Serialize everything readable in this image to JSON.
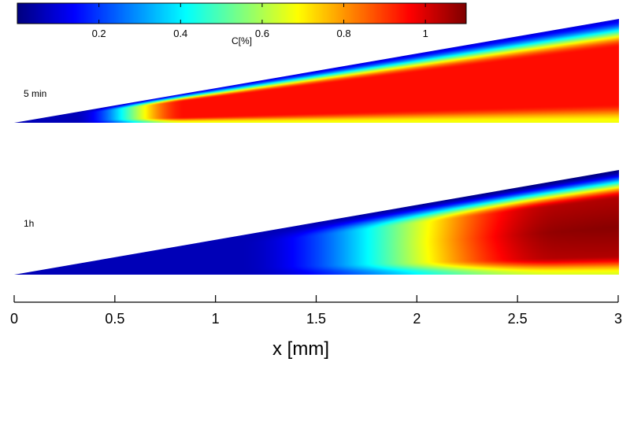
{
  "chart_data": {
    "type": "heatmap",
    "colorbar": {
      "label": "C[%]",
      "ticks": [
        0.2,
        0.4,
        0.6,
        0.8,
        1
      ],
      "tick_labels": [
        "0.2",
        "0.4",
        "0.6",
        "0.8",
        "1"
      ],
      "range": [
        0,
        1.1
      ],
      "colormap": "jet",
      "placement": "top"
    },
    "xaxis": {
      "label": "x [mm]",
      "range": [
        0,
        3
      ],
      "ticks": [
        0,
        0.5,
        1,
        1.5,
        2,
        2.5,
        3
      ],
      "tick_labels": [
        "0",
        "0.5",
        "1",
        "1.5",
        "2",
        "2.5",
        "3"
      ]
    },
    "panels": [
      {
        "label": "5 min",
        "shape": "wedge",
        "height_ratio": [
          0,
          1
        ],
        "interior_level": 0.95,
        "front_x_mm": 0.5,
        "front_width_mm": 0.35,
        "surface_level": 0.1,
        "bottom_level": 0.45
      },
      {
        "label": "1h",
        "shape": "wedge",
        "height_ratio": [
          0,
          1
        ],
        "interior_level": 1.02,
        "front_x_mm": 1.7,
        "front_width_mm": 1.0,
        "surface_level": 0.0,
        "bottom_level": 0.35
      }
    ]
  }
}
